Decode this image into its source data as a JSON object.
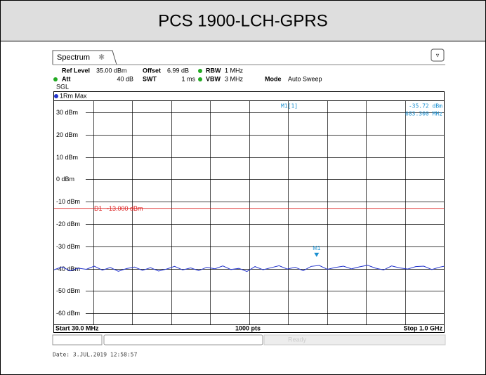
{
  "title": "PCS 1900-LCH-GPRS",
  "tab": "Spectrum",
  "settings": {
    "ref_level_label": "Ref Level",
    "ref_level": "35.00 dBm",
    "offset_label": "Offset",
    "offset": "6.99 dB",
    "rbw_label": "RBW",
    "rbw": "1 MHz",
    "att_label": "Att",
    "att": "40 dB",
    "swt_label": "SWT",
    "swt": "1 ms",
    "vbw_label": "VBW",
    "vbw": "3 MHz",
    "mode_label": "Mode",
    "mode": "Auto Sweep",
    "sgl": "SGL"
  },
  "footer": {
    "start": "Start 30.0 MHz",
    "points": "1000 pts",
    "stop": "Stop 1.0 GHz"
  },
  "status": "Ready",
  "date": "Date: 3.JUL.2019  12:58:57",
  "chart_data": {
    "type": "line",
    "trace_label": "1Rm Max",
    "xlim": [
      30,
      1000
    ],
    "ylim": [
      -65,
      35
    ],
    "yticks": [
      {
        "value": 30,
        "label": "30 dBm"
      },
      {
        "value": 20,
        "label": "20 dBm"
      },
      {
        "value": 10,
        "label": "10 dBm"
      },
      {
        "value": 0,
        "label": "0 dBm"
      },
      {
        "value": -10,
        "label": "-10 dBm"
      },
      {
        "value": -20,
        "label": "-20 dBm"
      },
      {
        "value": -30,
        "label": "-30 dBm"
      },
      {
        "value": -40,
        "label": "-40 dBm"
      },
      {
        "value": -50,
        "label": "-50 dBm"
      },
      {
        "value": -60,
        "label": "-60 dBm"
      }
    ],
    "grid": true,
    "series": [
      {
        "color": "#2233cc",
        "x": [
          30,
          50,
          70,
          90,
          110,
          130,
          150,
          170,
          190,
          210,
          230,
          250,
          270,
          290,
          310,
          330,
          350,
          370,
          390,
          410,
          430,
          450,
          470,
          490,
          510,
          530,
          550,
          570,
          590,
          610,
          630,
          650,
          670,
          690,
          710,
          730,
          750,
          770,
          790,
          810,
          830,
          850,
          870,
          890,
          910,
          930,
          950,
          970,
          990,
          1000
        ],
        "values": [
          -40.5,
          -39.2,
          -41.0,
          -39.8,
          -40.3,
          -38.9,
          -40.7,
          -39.5,
          -41.2,
          -40.0,
          -39.3,
          -40.8,
          -39.6,
          -41.1,
          -40.2,
          -39.0,
          -40.6,
          -39.7,
          -40.9,
          -39.4,
          -40.1,
          -38.8,
          -40.4,
          -39.9,
          -41.3,
          -39.1,
          -40.5,
          -39.6,
          -38.7,
          -40.2,
          -39.4,
          -40.9,
          -39.0,
          -38.6,
          -40.3,
          -39.5,
          -38.9,
          -40.1,
          -39.2,
          -38.5,
          -39.8,
          -40.6,
          -38.8,
          -39.7,
          -40.2,
          -39.1,
          -38.9,
          -40.4,
          -39.3,
          -39.0
        ]
      }
    ],
    "hlines": [
      {
        "name": "D1",
        "value": -13,
        "label": "-13.000 dBm",
        "color": "#dd2222"
      }
    ],
    "markers": [
      {
        "name": "M1",
        "x": 683.3,
        "y": -35.72,
        "readout": "M1[1]",
        "y_label": "-35.72 dBm",
        "x_label": "683.300 MHz",
        "color": "#1a8fd0"
      }
    ]
  }
}
